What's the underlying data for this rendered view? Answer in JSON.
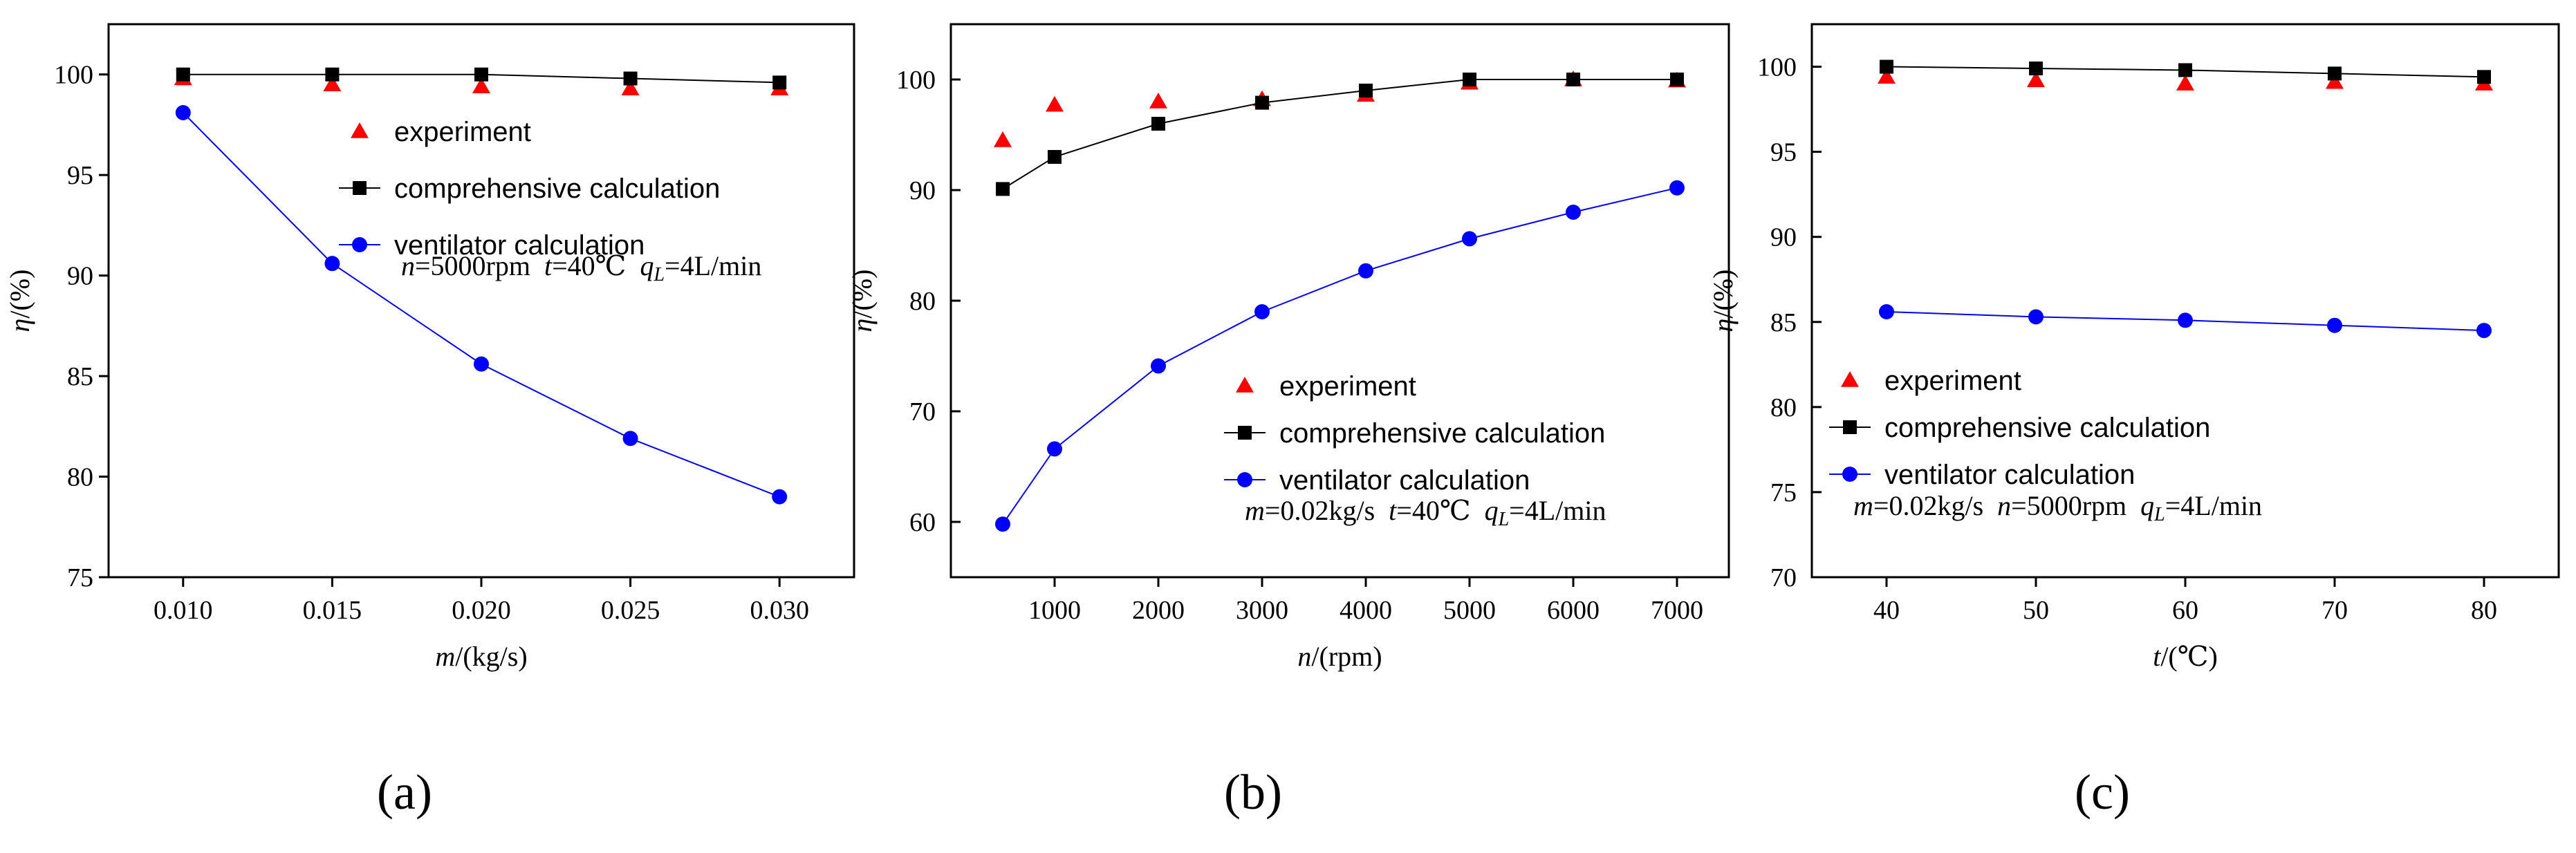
{
  "figure": {
    "panel_labels": [
      "(a)",
      "(b)",
      "(c)"
    ]
  },
  "legend": {
    "experiment": "experiment",
    "comprehensive": "comprehensive calculation",
    "ventilator": "ventilator calculation"
  },
  "colors": {
    "experiment": "#ff0000",
    "comprehensive": "#000000",
    "ventilator": "#0000ff"
  },
  "chart_data": [
    {
      "type": "line",
      "panel": "(a)",
      "xlabel_var": "m",
      "xlabel_unit": "/(kg/s)",
      "ylabel_var": "η",
      "ylabel_unit": "/(%)",
      "xlim": [
        0.0075,
        0.0325
      ],
      "ylim": [
        75,
        102.5
      ],
      "x": [
        0.01,
        0.015,
        0.02,
        0.025,
        0.03
      ],
      "xticks": [
        0.01,
        0.015,
        0.02,
        0.025,
        0.03
      ],
      "xtick_labels": [
        "0.010",
        "0.015",
        "0.020",
        "0.025",
        "0.030"
      ],
      "yticks": [
        75,
        80,
        85,
        90,
        95,
        100
      ],
      "ytick_labels": [
        "75",
        "80",
        "85",
        "90",
        "95",
        "100"
      ],
      "series": [
        {
          "name": "experiment",
          "marker": "triangle",
          "line": false,
          "values": [
            99.8,
            99.5,
            99.4,
            99.3,
            99.3
          ]
        },
        {
          "name": "comprehensive calculation",
          "marker": "square",
          "line": true,
          "values": [
            100,
            100,
            100,
            99.8,
            99.6
          ]
        },
        {
          "name": "ventilator calculation",
          "marker": "circle",
          "line": true,
          "values": [
            98.1,
            90.6,
            85.6,
            81.9,
            79.0
          ]
        }
      ],
      "conditions": [
        {
          "var": "n",
          "text": "=5000rpm"
        },
        {
          "var": "t",
          "text": "=40℃"
        },
        {
          "var": "q",
          "sub": "L",
          "text": "=4L/min"
        }
      ]
    },
    {
      "type": "line",
      "panel": "(b)",
      "xlabel_var": "n",
      "xlabel_unit": "/(rpm)",
      "ylabel_var": "η",
      "ylabel_unit": "/(%)",
      "xlim": [
        0,
        7500
      ],
      "ylim": [
        55,
        105
      ],
      "x": [
        500,
        1000,
        2000,
        3000,
        4000,
        5000,
        6000,
        7000
      ],
      "xticks": [
        1000,
        2000,
        3000,
        4000,
        5000,
        6000,
        7000
      ],
      "xtick_labels": [
        "1000",
        "2000",
        "3000",
        "4000",
        "5000",
        "6000",
        "7000"
      ],
      "yticks": [
        60,
        70,
        80,
        90,
        100
      ],
      "ytick_labels": [
        "60",
        "70",
        "80",
        "90",
        "100"
      ],
      "series": [
        {
          "name": "experiment",
          "marker": "triangle",
          "line": false,
          "values": [
            94.5,
            97.7,
            98.0,
            98.2,
            98.6,
            99.7,
            100.0,
            99.9
          ]
        },
        {
          "name": "comprehensive calculation",
          "marker": "square",
          "line": true,
          "values": [
            90.1,
            93.0,
            96.0,
            97.9,
            99.0,
            100.0,
            100.0,
            100.0
          ]
        },
        {
          "name": "ventilator calculation",
          "marker": "circle",
          "line": true,
          "values": [
            59.8,
            66.6,
            74.1,
            79.0,
            82.7,
            85.6,
            88.0,
            90.2
          ]
        }
      ],
      "conditions": [
        {
          "var": "m",
          "text": "=0.02kg/s"
        },
        {
          "var": "t",
          "text": "=40℃"
        },
        {
          "var": "q",
          "sub": "L",
          "text": "=4L/min"
        }
      ]
    },
    {
      "type": "line",
      "panel": "(c)",
      "xlabel_var": "t",
      "xlabel_unit": "/(℃)",
      "ylabel_var": "η",
      "ylabel_unit": "/(%)",
      "xlim": [
        35,
        85
      ],
      "ylim": [
        70,
        102.5
      ],
      "x": [
        40,
        50,
        60,
        70,
        80
      ],
      "xticks": [
        40,
        50,
        60,
        70,
        80
      ],
      "xtick_labels": [
        "40",
        "50",
        "60",
        "70",
        "80"
      ],
      "yticks": [
        70,
        75,
        80,
        85,
        90,
        95,
        100
      ],
      "ytick_labels": [
        "70",
        "75",
        "80",
        "85",
        "90",
        "95",
        "100"
      ],
      "series": [
        {
          "name": "experiment",
          "marker": "triangle",
          "line": false,
          "values": [
            99.4,
            99.2,
            99.0,
            99.1,
            99.0
          ]
        },
        {
          "name": "comprehensive calculation",
          "marker": "square",
          "line": true,
          "values": [
            100.0,
            99.9,
            99.8,
            99.6,
            99.4
          ]
        },
        {
          "name": "ventilator calculation",
          "marker": "circle",
          "line": true,
          "values": [
            85.6,
            85.3,
            85.1,
            84.8,
            84.5
          ]
        }
      ],
      "conditions": [
        {
          "var": "m",
          "text": "=0.02kg/s"
        },
        {
          "var": "n",
          "text": "=5000rpm"
        },
        {
          "var": "q",
          "sub": "L",
          "text": "=4L/min"
        }
      ]
    }
  ]
}
